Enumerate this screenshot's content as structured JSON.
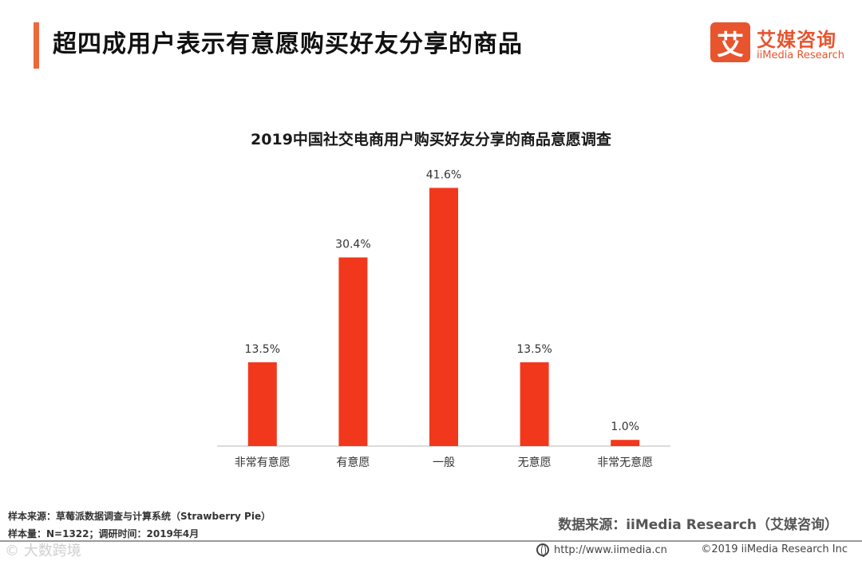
{
  "page": {
    "title": "超四成用户表示有意愿购买好友分享的商品"
  },
  "logo": {
    "mark": "艾",
    "name_cn": "艾媒咨询",
    "name_en": "iiMedia Research"
  },
  "colors": {
    "accent": "#ec6a3a",
    "bar": "#f2381c",
    "logo": "#e8542e"
  },
  "chart_data": {
    "type": "bar",
    "title": "2019中国社交电商用户购买好友分享的商品意愿调查",
    "categories": [
      "非常有意愿",
      "有意愿",
      "一般",
      "无意愿",
      "非常无意愿"
    ],
    "values": [
      13.5,
      30.4,
      41.6,
      13.5,
      1.0
    ],
    "value_labels": [
      "13.5%",
      "30.4%",
      "41.6%",
      "13.5%",
      "1.0%"
    ],
    "unit": "%",
    "ylim": [
      0,
      45
    ],
    "xlabel": "",
    "ylabel": "",
    "grid": false,
    "legend": "none"
  },
  "footer": {
    "sample_source": "样本来源：草莓派数据调查与计算系统（Strawberry Pie）",
    "sample_size": "样本量：N=1322；调研时间：2019年4月",
    "data_source": "数据来源：iiMedia Research（艾媒咨询）",
    "url": "http://www.iimedia.cn",
    "copyright": "©2019  iiMedia Research  Inc",
    "watermark": "© 大数跨境"
  }
}
